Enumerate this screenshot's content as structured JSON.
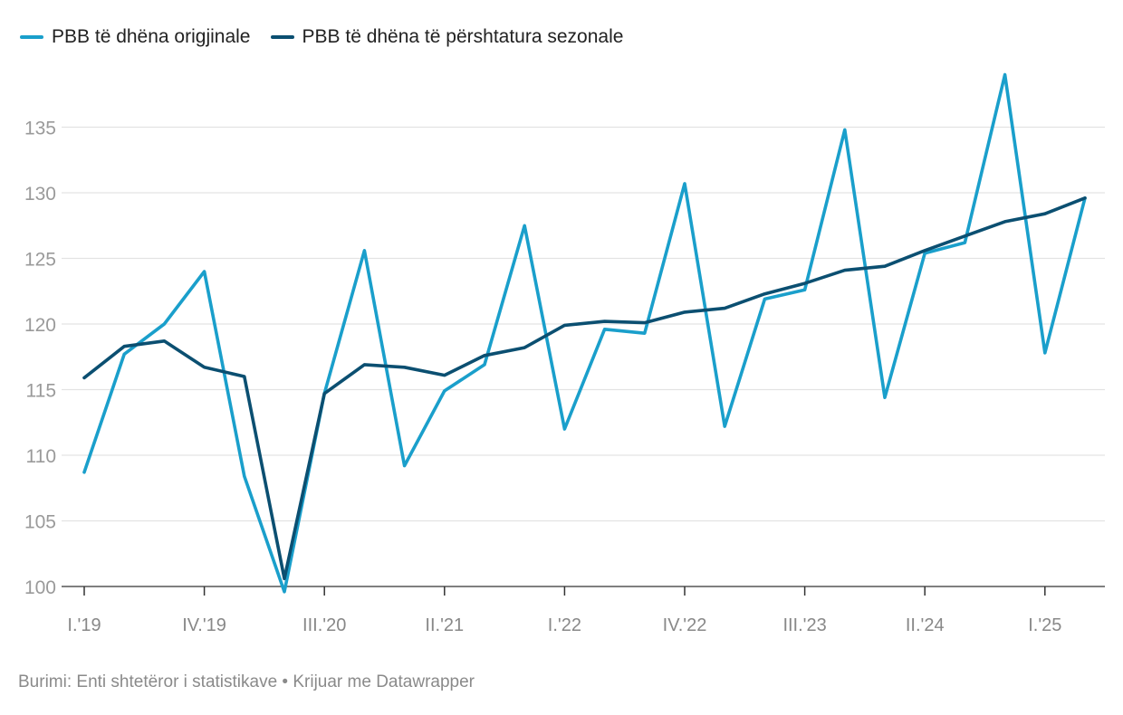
{
  "chart_data": {
    "type": "line",
    "legend_position": "top-left",
    "grid": true,
    "ylim": [
      100,
      138
    ],
    "yticks": [
      100,
      105,
      110,
      115,
      120,
      125,
      130,
      135
    ],
    "xtick_labels": [
      {
        "index": 0,
        "label": "I.'19"
      },
      {
        "index": 3,
        "label": "IV.'19"
      },
      {
        "index": 6,
        "label": "III.'20"
      },
      {
        "index": 9,
        "label": "II.'21"
      },
      {
        "index": 12,
        "label": "I.'22"
      },
      {
        "index": 15,
        "label": "IV.'22"
      },
      {
        "index": 18,
        "label": "III.'23"
      },
      {
        "index": 21,
        "label": "II.'24"
      },
      {
        "index": 24,
        "label": "I.'25"
      }
    ],
    "num_points": 26,
    "series": [
      {
        "name": "PBB të dhëna origjinale",
        "color": "#1a9fcb",
        "values": [
          108.7,
          117.7,
          120.0,
          124.0,
          108.4,
          99.6,
          114.7,
          125.6,
          109.2,
          114.9,
          116.9,
          127.5,
          112.0,
          119.6,
          119.3,
          130.7,
          112.2,
          121.9,
          122.6,
          134.8,
          114.4,
          125.4,
          126.2,
          139.0,
          117.8,
          129.6
        ]
      },
      {
        "name": "PBB të dhëna të përshtatura sezonale",
        "color": "#0b4f71",
        "values": [
          115.9,
          118.3,
          118.7,
          116.7,
          116.0,
          100.6,
          114.7,
          116.9,
          116.7,
          116.1,
          117.6,
          118.2,
          119.9,
          120.2,
          120.1,
          120.9,
          121.2,
          122.3,
          123.1,
          124.1,
          124.4,
          125.6,
          126.7,
          127.8,
          128.4,
          129.6
        ]
      }
    ]
  },
  "source_text": "Burimi: Enti shtetëror i statistikave • Krijuar me Datawrapper"
}
